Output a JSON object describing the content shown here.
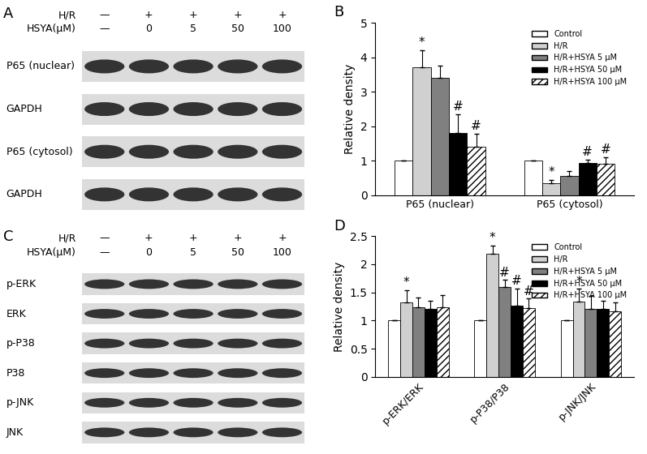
{
  "chart_data": [
    {
      "type": "bar",
      "title": "B",
      "ylabel": "Relative density",
      "categories": [
        "P65 (nuclear)",
        "P65 (cytosol)"
      ],
      "ylim": [
        0,
        5
      ],
      "yticks": [
        0,
        1,
        2,
        3,
        4,
        5
      ],
      "legend": "upper right",
      "series": [
        {
          "name": "Control",
          "color": "#ffffff",
          "values": [
            1,
            1
          ],
          "errors": [
            0,
            0
          ],
          "annotations": [
            null,
            null
          ]
        },
        {
          "name": "H/R",
          "color": "#d0d0d0",
          "values": [
            3.7,
            0.35
          ],
          "errors": [
            0.5,
            0.08
          ],
          "annotations": [
            "*",
            "*"
          ]
        },
        {
          "name": "H/R+HSYA 5 μM",
          "color": "#808080",
          "values": [
            3.4,
            0.57
          ],
          "errors": [
            0.35,
            0.12
          ],
          "annotations": [
            null,
            null
          ]
        },
        {
          "name": "H/R+HSYA 50 μM",
          "color": "#000000",
          "values": [
            1.8,
            0.93
          ],
          "errors": [
            0.55,
            0.1
          ],
          "annotations": [
            "#",
            "#"
          ]
        },
        {
          "name": "H/R+HSYA 100 μM",
          "color": "#ffffff",
          "values": [
            1.4,
            0.92
          ],
          "errors": [
            0.38,
            0.18
          ],
          "annotations": [
            "#",
            "#"
          ]
        }
      ]
    },
    {
      "type": "bar",
      "title": "D",
      "ylabel": "Relative density",
      "categories": [
        "p-ERK/ERK",
        "p-P38/P38",
        "p-JNK/JNK"
      ],
      "ylim": [
        0,
        2.5
      ],
      "yticks": [
        0,
        0.5,
        1,
        1.5,
        2,
        2.5
      ],
      "legend": "upper right",
      "series": [
        {
          "name": "Control",
          "color": "#ffffff",
          "values": [
            1,
            1,
            1
          ],
          "errors": [
            0,
            0,
            0
          ],
          "annotations": [
            null,
            null,
            null
          ]
        },
        {
          "name": "H/R",
          "color": "#d0d0d0",
          "values": [
            1.32,
            2.18,
            1.34
          ],
          "errors": [
            0.22,
            0.15,
            0.22
          ],
          "annotations": [
            "*",
            "*",
            "*"
          ]
        },
        {
          "name": "H/R+HSYA 5 μM",
          "color": "#808080",
          "values": [
            1.23,
            1.6,
            1.2
          ],
          "errors": [
            0.18,
            0.12,
            0.24
          ],
          "annotations": [
            null,
            "#",
            null
          ]
        },
        {
          "name": "H/R+HSYA 50 μM",
          "color": "#000000",
          "values": [
            1.2,
            1.27,
            1.2
          ],
          "errors": [
            0.15,
            0.3,
            0.15
          ],
          "annotations": [
            null,
            "#",
            null
          ]
        },
        {
          "name": "H/R+HSYA 100 μM",
          "color": "#ffffff",
          "values": [
            1.23,
            1.22,
            1.17
          ],
          "errors": [
            0.22,
            0.17,
            0.15
          ],
          "annotations": [
            null,
            "#",
            null
          ]
        }
      ]
    }
  ],
  "blots": [
    {
      "title": "A",
      "header_rows": [
        {
          "label": "H/R",
          "lanes": [
            "—",
            "+",
            "+",
            "+",
            "+"
          ]
        },
        {
          "label": "HSYA(μM)",
          "lanes": [
            "—",
            "0",
            "5",
            "50",
            "100"
          ]
        }
      ],
      "bands": [
        "P65 (nuclear)",
        "GAPDH",
        "P65 (cytosol)",
        "GAPDH"
      ]
    },
    {
      "title": "C",
      "header_rows": [
        {
          "label": "H/R",
          "lanes": [
            "—",
            "+",
            "+",
            "+",
            "+"
          ]
        },
        {
          "label": "HSYA(μM)",
          "lanes": [
            "—",
            "0",
            "5",
            "50",
            "100"
          ]
        }
      ],
      "bands": [
        "p-ERK",
        "ERK",
        "p-P38",
        "P38",
        "p-JNK",
        "JNK"
      ]
    }
  ]
}
